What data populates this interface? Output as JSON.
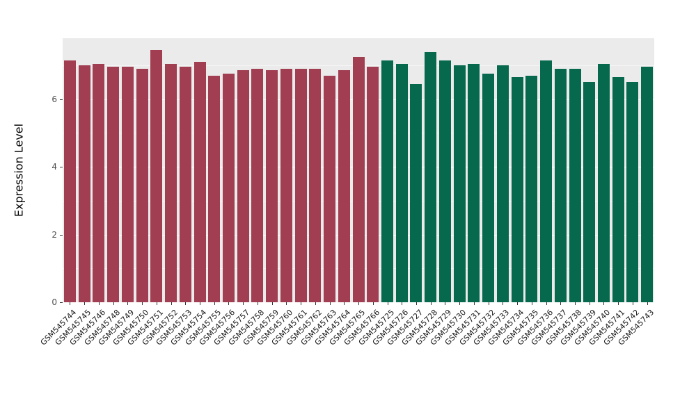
{
  "chart_data": {
    "type": "bar",
    "title": "",
    "xlabel": "",
    "ylabel": "Expression Level",
    "ylim": [
      0,
      7.8
    ],
    "yticks": [
      0,
      2,
      4,
      6
    ],
    "minor_ticks": [
      1,
      3,
      5,
      7
    ],
    "legend": "none",
    "panel_background": "#EBEBEB",
    "grid_color": "#ffffff",
    "group_colors": {
      "groupA": "#A13E51",
      "groupB": "#06694E"
    },
    "categories": [
      "GSM545744",
      "GSM545745",
      "GSM545746",
      "GSM545748",
      "GSM545749",
      "GSM545750",
      "GSM545751",
      "GSM545752",
      "GSM545753",
      "GSM545754",
      "GSM545755",
      "GSM545756",
      "GSM545757",
      "GSM545758",
      "GSM545759",
      "GSM545760",
      "GSM545761",
      "GSM545762",
      "GSM545763",
      "GSM545764",
      "GSM545765",
      "GSM545766",
      "GSM545725",
      "GSM545726",
      "GSM545727",
      "GSM545728",
      "GSM545729",
      "GSM545730",
      "GSM545731",
      "GSM545732",
      "GSM545733",
      "GSM545734",
      "GSM545735",
      "GSM545736",
      "GSM545737",
      "GSM545738",
      "GSM545739",
      "GSM545740",
      "GSM545741",
      "GSM545742",
      "GSM545743"
    ],
    "values": [
      7.15,
      7.0,
      7.05,
      6.95,
      6.95,
      6.9,
      7.45,
      7.05,
      6.95,
      7.1,
      6.7,
      6.75,
      6.85,
      6.9,
      6.85,
      6.9,
      6.9,
      6.9,
      6.7,
      6.85,
      7.25,
      6.95,
      7.15,
      7.05,
      6.45,
      7.4,
      7.15,
      7.0,
      7.05,
      6.75,
      7.0,
      6.65,
      6.7,
      7.15,
      6.9,
      6.9,
      6.5,
      7.05,
      6.65,
      6.5,
      6.95
    ],
    "groups": [
      "groupA",
      "groupA",
      "groupA",
      "groupA",
      "groupA",
      "groupA",
      "groupA",
      "groupA",
      "groupA",
      "groupA",
      "groupA",
      "groupA",
      "groupA",
      "groupA",
      "groupA",
      "groupA",
      "groupA",
      "groupA",
      "groupA",
      "groupA",
      "groupA",
      "groupA",
      "groupB",
      "groupB",
      "groupB",
      "groupB",
      "groupB",
      "groupB",
      "groupB",
      "groupB",
      "groupB",
      "groupB",
      "groupB",
      "groupB",
      "groupB",
      "groupB",
      "groupB",
      "groupB",
      "groupB",
      "groupB",
      "groupB"
    ]
  }
}
